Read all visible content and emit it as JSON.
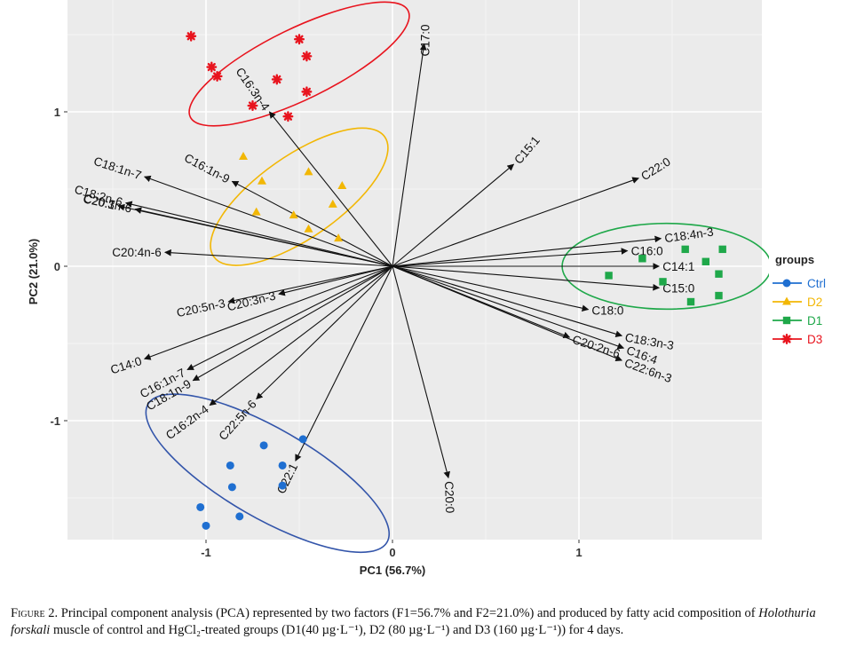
{
  "chart_data": {
    "type": "scatter",
    "subtype": "pca-biplot",
    "xlabel": "PC1 (56.7%)",
    "ylabel": "PC2 (21.0%)",
    "xlim": [
      -1.75,
      1.95
    ],
    "ylim": [
      -1.75,
      1.72
    ],
    "x_ticks": [
      -1,
      0,
      1
    ],
    "y_ticks": [
      -1,
      0,
      1
    ],
    "grid": true,
    "legend": {
      "title": "groups",
      "position": "right",
      "entries": [
        {
          "label": "Ctrl",
          "color": "#1f6fd1",
          "marker": "circle"
        },
        {
          "label": "D2",
          "color": "#f2b705",
          "marker": "triangle"
        },
        {
          "label": "D1",
          "color": "#1fa84a",
          "marker": "square"
        },
        {
          "label": "D3",
          "color": "#e8141e",
          "marker": "asterisk"
        }
      ]
    },
    "groups": [
      {
        "name": "Ctrl",
        "color": "#1f6fd1",
        "marker": "circle",
        "ellipse": {
          "cx": -0.67,
          "cy": -1.34,
          "rx": 0.74,
          "ry": 0.24,
          "angle": 30,
          "color": "#3355aa"
        },
        "points": [
          [
            -0.48,
            -1.12
          ],
          [
            -0.69,
            -1.16
          ],
          [
            -0.87,
            -1.29
          ],
          [
            -0.59,
            -1.29
          ],
          [
            -0.86,
            -1.43
          ],
          [
            -0.59,
            -1.42
          ],
          [
            -1.03,
            -1.56
          ],
          [
            -0.82,
            -1.62
          ],
          [
            -1.0,
            -1.68
          ]
        ]
      },
      {
        "name": "D2",
        "color": "#f2b705",
        "marker": "triangle",
        "ellipse": {
          "cx": -0.5,
          "cy": 0.45,
          "rx": 0.56,
          "ry": 0.22,
          "angle": -35,
          "color": "#f2b705"
        },
        "points": [
          [
            -0.8,
            0.71
          ],
          [
            -0.7,
            0.55
          ],
          [
            -0.45,
            0.61
          ],
          [
            -0.27,
            0.52
          ],
          [
            -0.32,
            0.4
          ],
          [
            -0.73,
            0.35
          ],
          [
            -0.53,
            0.33
          ],
          [
            -0.45,
            0.24
          ],
          [
            -0.29,
            0.18
          ]
        ]
      },
      {
        "name": "D1",
        "color": "#1fa84a",
        "marker": "square",
        "ellipse": {
          "cx": 1.47,
          "cy": 0.0,
          "rx": 0.56,
          "ry": 0.23,
          "angle": 0,
          "color": "#1fa84a"
        },
        "points": [
          [
            1.34,
            0.05
          ],
          [
            1.57,
            0.11
          ],
          [
            1.77,
            0.11
          ],
          [
            1.68,
            0.03
          ],
          [
            1.16,
            -0.06
          ],
          [
            1.45,
            -0.1
          ],
          [
            1.75,
            -0.05
          ],
          [
            1.6,
            -0.23
          ],
          [
            1.75,
            -0.19
          ]
        ]
      },
      {
        "name": "D3",
        "color": "#e8141e",
        "marker": "asterisk",
        "ellipse": {
          "cx": -0.5,
          "cy": 1.31,
          "rx": 0.65,
          "ry": 0.19,
          "angle": -26,
          "color": "#e8141e"
        },
        "points": [
          [
            -1.08,
            1.49
          ],
          [
            -0.5,
            1.47
          ],
          [
            -0.46,
            1.36
          ],
          [
            -0.97,
            1.29
          ],
          [
            -0.94,
            1.23
          ],
          [
            -0.62,
            1.21
          ],
          [
            -0.46,
            1.13
          ],
          [
            -0.75,
            1.04
          ],
          [
            -0.56,
            0.97
          ]
        ]
      }
    ],
    "loadings": [
      {
        "label": "C17:0",
        "x": 0.17,
        "y": 1.44,
        "label_angle": -90
      },
      {
        "label": "C16:3n-4",
        "x": -0.66,
        "y": 1.0,
        "label_angle": 55
      },
      {
        "label": "C15:1",
        "x": 0.65,
        "y": 0.66,
        "label_angle": -50
      },
      {
        "label": "C22:0",
        "x": 1.32,
        "y": 0.57,
        "label_angle": -32
      },
      {
        "label": "C18:1n-7",
        "x": -1.33,
        "y": 0.58,
        "label_angle": 18
      },
      {
        "label": "C16:1n-9",
        "x": -0.86,
        "y": 0.55,
        "label_angle": 28
      },
      {
        "label": "C18:2n-6",
        "x": -1.43,
        "y": 0.41,
        "label_angle": 16
      },
      {
        "label": "C20:1",
        "x": -1.47,
        "y": 0.39,
        "label_angle": 14
      },
      {
        "label": "C20:3n-6",
        "x": -1.38,
        "y": 0.37,
        "label_angle": 12
      },
      {
        "label": "C20:4n-6",
        "x": -1.22,
        "y": 0.09,
        "label_angle": 0
      },
      {
        "label": "C20:3n-3",
        "x": -0.61,
        "y": -0.18,
        "label_angle": -14
      },
      {
        "label": "C20:5n-3",
        "x": -0.88,
        "y": -0.23,
        "label_angle": -12
      },
      {
        "label": "C14:0",
        "x": -1.33,
        "y": -0.6,
        "label_angle": -18
      },
      {
        "label": "C16:1n-7",
        "x": -1.1,
        "y": -0.67,
        "label_angle": -28
      },
      {
        "label": "C18:1n-9",
        "x": -1.07,
        "y": -0.74,
        "label_angle": -30
      },
      {
        "label": "C16:2n-4",
        "x": -0.98,
        "y": -0.9,
        "label_angle": -36
      },
      {
        "label": "C22:5n-6",
        "x": -0.73,
        "y": -0.86,
        "label_angle": -48
      },
      {
        "label": "C22:1",
        "x": -0.52,
        "y": -1.26,
        "label_angle": -64
      },
      {
        "label": "C20:0",
        "x": 0.3,
        "y": -1.37,
        "label_angle": 88
      },
      {
        "label": "C16:0",
        "x": 1.26,
        "y": 0.1,
        "label_angle": 0
      },
      {
        "label": "C18:4n-3",
        "x": 1.44,
        "y": 0.18,
        "label_angle": -8
      },
      {
        "label": "C14:1",
        "x": 1.43,
        "y": 0.0,
        "label_angle": 0
      },
      {
        "label": "C15:0",
        "x": 1.43,
        "y": -0.14,
        "label_angle": 0
      },
      {
        "label": "C18:0",
        "x": 1.05,
        "y": -0.28,
        "label_angle": 0
      },
      {
        "label": "C18:3n-3",
        "x": 1.23,
        "y": -0.45,
        "label_angle": 10
      },
      {
        "label": "C20:2n-6",
        "x": 0.95,
        "y": -0.46,
        "label_angle": 18
      },
      {
        "label": "C16:4",
        "x": 1.24,
        "y": -0.53,
        "label_angle": 20
      },
      {
        "label": "C22:6n-3",
        "x": 1.23,
        "y": -0.61,
        "label_angle": 20
      }
    ]
  },
  "caption": {
    "figure_label": "Figure 2.",
    "text_before": " Principal component analysis (PCA) represented by two factors (F1=56.7% and F2=21.0%) and produced by fatty acid composition of ",
    "species": "Holothuria forskali",
    "text_after": " muscle of control and HgCl₂-treated groups (D1(40 µg·L⁻¹), D2 (80 µg·L⁻¹) and D3 (160 µg·L⁻¹)) for 4 days."
  }
}
